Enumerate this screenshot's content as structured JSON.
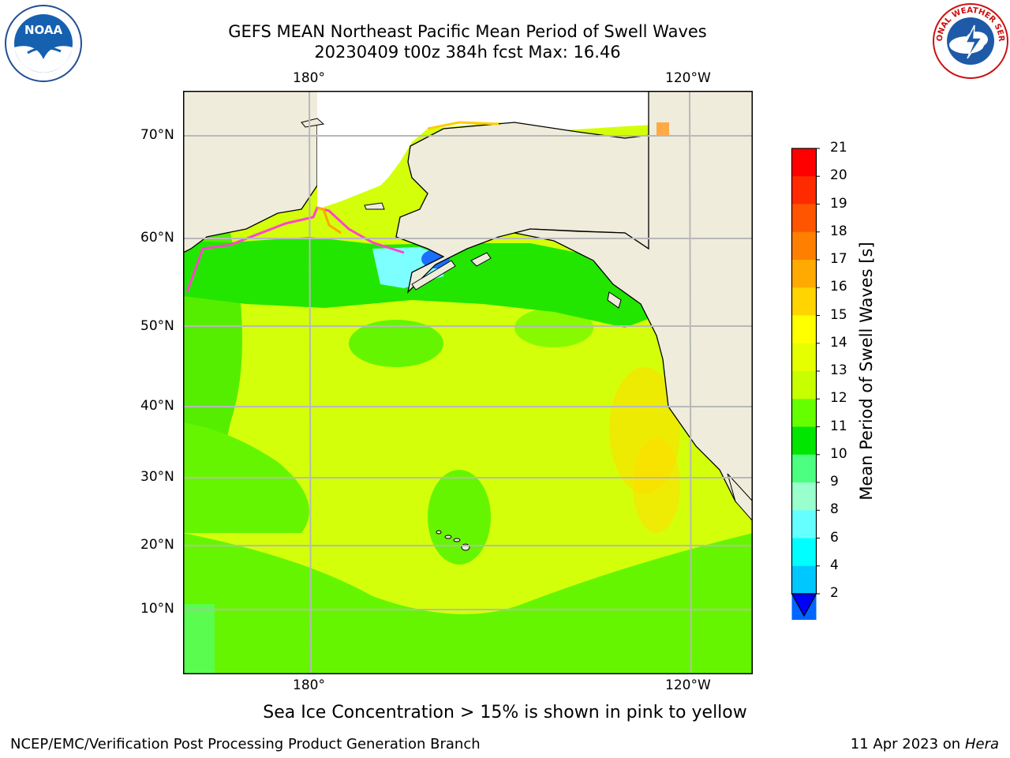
{
  "title_line1": "GEFS MEAN Northeast Pacific Mean Period of Swell Waves",
  "title_line2": "20230409 t00z 384h fcst   Max: 16.46",
  "map": {
    "lon_labels": [
      "180°",
      "120°W"
    ],
    "lat_labels": [
      "70°N",
      "60°N",
      "50°N",
      "40°N",
      "30°N",
      "20°N",
      "10°N"
    ],
    "land_color": "#efecdc",
    "grid_color": "#b8b8b8"
  },
  "colorbar": {
    "label": "Mean Period of Swell Waves [s]",
    "ticks": [
      "21",
      "20",
      "19",
      "18",
      "17",
      "16",
      "15",
      "14",
      "13",
      "12",
      "11",
      "10",
      "9",
      "8",
      "6",
      "4",
      "2"
    ],
    "colors": [
      "#ff0000",
      "#ff2a00",
      "#ff5500",
      "#ff7f00",
      "#ffaa00",
      "#ffd400",
      "#ffff00",
      "#e6ff00",
      "#c8ff00",
      "#66ff00",
      "#00e600",
      "#4dff80",
      "#99ffcc",
      "#66ffff",
      "#00ffff",
      "#00c8ff",
      "#0066ff"
    ],
    "extend_color": "#0000ff"
  },
  "caption": "Sea Ice Concentration > 15% is shown in pink to yellow",
  "footer_left": "NCEP/EMC/Verification Post Processing Product Generation Branch",
  "footer_right_date": "11 Apr 2023 on ",
  "footer_right_host": "Hera",
  "logos": {
    "noaa_text": "NOAA",
    "nws_text": "NATIONAL WEATHER SERVICE"
  }
}
